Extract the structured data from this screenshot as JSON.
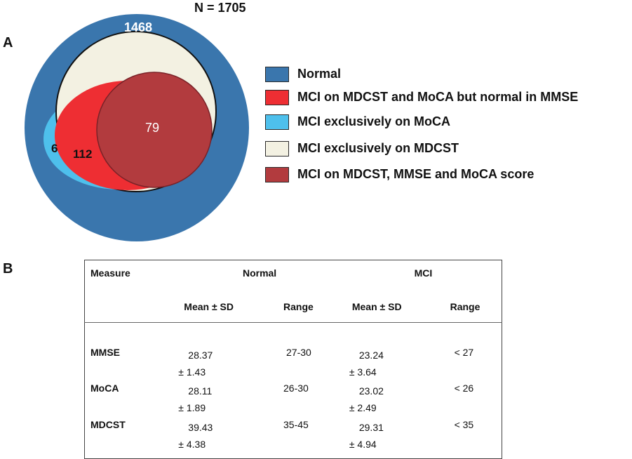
{
  "panel_a_label": "A",
  "panel_b_label": "B",
  "venn": {
    "total_label": "N = 1705",
    "regions": [
      {
        "key": "normal",
        "count": "1468",
        "color": "#3a76ad"
      },
      {
        "key": "mdcst_moca",
        "count": "112",
        "color": "#ee2e33"
      },
      {
        "key": "moca_only",
        "count": "6",
        "color": "#4ec0ec"
      },
      {
        "key": "mdcst_only",
        "count": "",
        "color": "#f3f1e2"
      },
      {
        "key": "all_three",
        "count": "79",
        "color": "#b23b3e"
      }
    ]
  },
  "legend": [
    {
      "label": "Normal",
      "color": "#3a76ad"
    },
    {
      "label": "MCI on MDCST and MoCA but normal in MMSE",
      "color": "#ee2e33"
    },
    {
      "label": "MCI  exclusively on MoCA",
      "color": "#4ec0ec"
    },
    {
      "label": "MCI  exclusively on MDCST",
      "color": "#f3f1e2"
    },
    {
      "label": "MCI on MDCST, MMSE and MoCA score",
      "color": "#b23b3e"
    }
  ],
  "table": {
    "measure_header": "Measure",
    "group_headers": [
      "Normal",
      "MCI"
    ],
    "sub_headers": [
      "Mean ± SD",
      "Range",
      "Mean ± SD",
      "Range"
    ],
    "rows": [
      {
        "measure": "MMSE",
        "normal_mean": "28.37",
        "normal_sd": "± 1.43",
        "normal_range": "27-30",
        "mci_mean": "23.24",
        "mci_sd": "± 3.64",
        "mci_range": "< 27"
      },
      {
        "measure": "MoCA",
        "normal_mean": "28.11",
        "normal_sd": "± 1.89",
        "normal_range": "26-30",
        "mci_mean": "23.02",
        "mci_sd": "± 2.49",
        "mci_range": "< 26"
      },
      {
        "measure": "MDCST",
        "normal_mean": "39.43",
        "normal_sd": "± 4.38",
        "normal_range": "35-45",
        "mci_mean": "29.31",
        "mci_sd": "± 4.94",
        "mci_range": "< 35"
      }
    ]
  }
}
